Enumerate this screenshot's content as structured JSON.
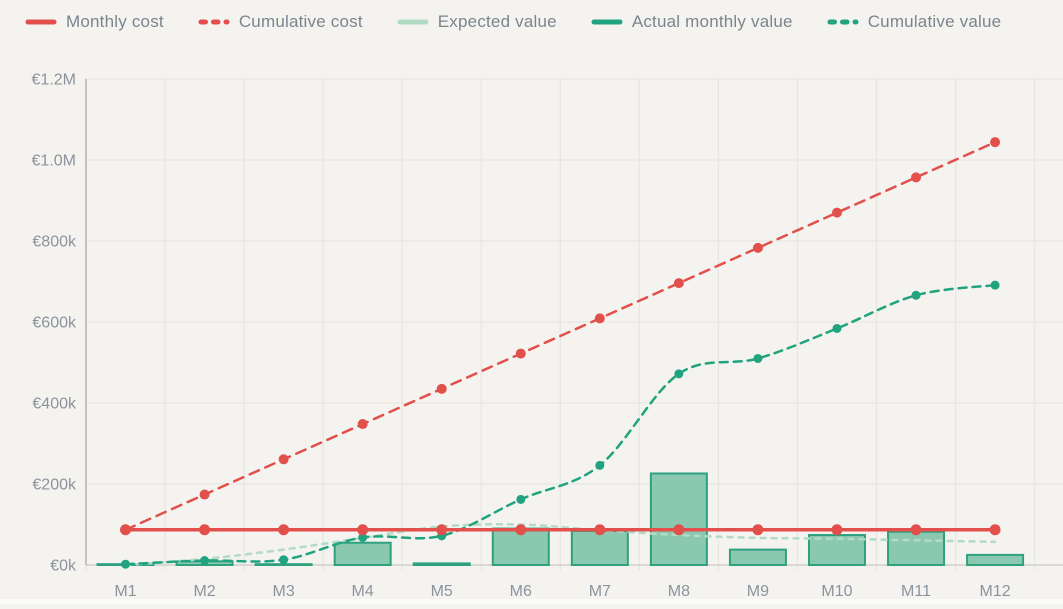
{
  "colors": {
    "background": "#f5f3ef",
    "red": "#e2504b",
    "green": "#20a37e",
    "light_green": "#b2dbc6",
    "bar_fill": "#8bc8b0",
    "bar_border": "#2fa080",
    "grid": "#e8e6e1",
    "zero_line": "#d1cfcb",
    "axis_line": "#bab8b4",
    "tick_text": "#8b949e",
    "legend_text": "#7a858e"
  },
  "chart_data": {
    "type": "bar+line",
    "title": "",
    "xlabel": "",
    "ylabel": "",
    "unit": "EUR thousands",
    "categories": [
      "M1",
      "M2",
      "M3",
      "M4",
      "M5",
      "M6",
      "M7",
      "M8",
      "M9",
      "M10",
      "M11",
      "M12"
    ],
    "ylim": [
      0,
      1200
    ],
    "ytick_values": [
      0,
      200,
      400,
      600,
      800,
      1000,
      1200
    ],
    "ytick_labels": [
      "€0k",
      "€200k",
      "€400k",
      "€600k",
      "€800k",
      "€1.0M",
      "€1.2M"
    ],
    "grid": true,
    "legend_position": "top-left",
    "series": [
      {
        "name": "Monthly cost",
        "type": "line",
        "line_style": "solid",
        "color_key": "red",
        "markers": true,
        "values": [
          87,
          87,
          87,
          87,
          87,
          87,
          87,
          87,
          87,
          87,
          87,
          87
        ]
      },
      {
        "name": "Cumulative cost",
        "type": "line",
        "line_style": "dashed",
        "color_key": "red",
        "markers": true,
        "values": [
          87,
          174,
          261,
          348,
          435,
          522,
          609,
          696,
          783,
          870,
          957,
          1044
        ]
      },
      {
        "name": "Expected value",
        "type": "line",
        "line_style": "dashed",
        "color_key": "light_green",
        "markers": false,
        "values": [
          0,
          15,
          38,
          67,
          95,
          100,
          86,
          74,
          67,
          65,
          61,
          57
        ]
      },
      {
        "name": "Actual monthly value",
        "type": "bar",
        "line_style": "solid",
        "color_key": "bar_fill",
        "markers": false,
        "values": [
          2,
          9,
          2,
          55,
          4,
          90,
          84,
          226,
          38,
          74,
          82,
          25
        ]
      },
      {
        "name": "Cumulative value",
        "type": "line",
        "line_style": "dashed",
        "color_key": "green",
        "markers": true,
        "values": [
          2,
          11,
          13,
          68,
          72,
          162,
          246,
          472,
          510,
          584,
          666,
          691
        ]
      }
    ]
  }
}
